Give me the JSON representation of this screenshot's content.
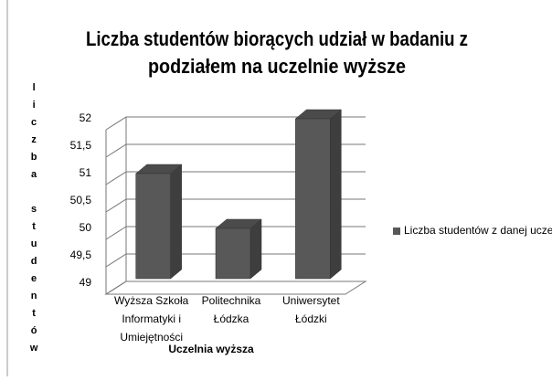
{
  "chart_data": {
    "type": "bar3d",
    "title": [
      "Liczba studentów biorących udział w badaniu  z",
      "podziałem na uczelnie wyższe"
    ],
    "y_label": "liczba studentów",
    "x_label": "Uczelnia wyższa",
    "categories": [
      [
        "Wyższa Szkoła",
        "Informatyki i",
        "Umiejętności"
      ],
      [
        "Politechnika",
        "Łódzka"
      ],
      [
        "Uniwersytet",
        "Łódzki"
      ]
    ],
    "series": [
      {
        "name": "Liczba studentów z danej uczelni",
        "color": "#585858",
        "values": [
          51,
          50,
          52
        ]
      }
    ],
    "ylim": [
      49,
      52
    ],
    "yticks": [
      49,
      {
        "value": 49.5,
        "label": "49,5"
      },
      50,
      {
        "value": 50.5,
        "label": "50,5"
      },
      51,
      {
        "value": 51.5,
        "label": "51,5"
      },
      52
    ],
    "grid": true,
    "legend": "right"
  }
}
